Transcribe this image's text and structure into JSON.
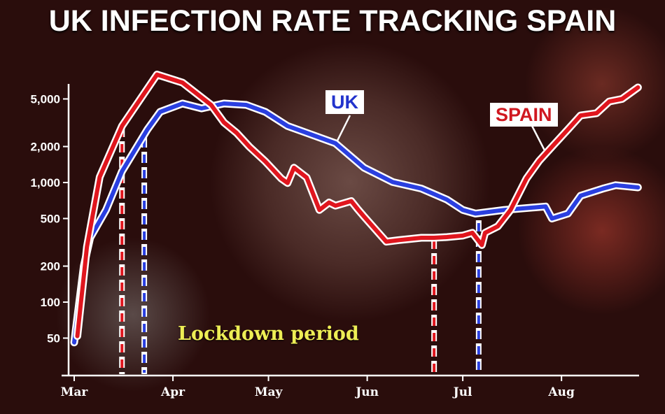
{
  "chart_data": {
    "type": "line",
    "title": "UK INFECTION RATE TRACKING SPAIN",
    "xlabel": "",
    "ylabel": "",
    "x_unit": "days since 1 March",
    "y_scale": "log",
    "ylim": [
      35,
      9000
    ],
    "xlim": [
      0,
      178
    ],
    "y_ticks": [
      {
        "value": 5000,
        "label": "5,000"
      },
      {
        "value": 2000,
        "label": "2,000"
      },
      {
        "value": 1000,
        "label": "1,000"
      },
      {
        "value": 500,
        "label": "500"
      },
      {
        "value": 200,
        "label": "200"
      },
      {
        "value": 100,
        "label": "100"
      },
      {
        "value": 50,
        "label": "50"
      }
    ],
    "x_ticks": [
      {
        "value": 0,
        "label": "Mar"
      },
      {
        "value": 31,
        "label": "Apr"
      },
      {
        "value": 61,
        "label": "May"
      },
      {
        "value": 92,
        "label": "Jun"
      },
      {
        "value": 122,
        "label": "Jul"
      },
      {
        "value": 153,
        "label": "Aug"
      }
    ],
    "series": [
      {
        "name": "SPAIN",
        "color": "#e0161e",
        "x": [
          1,
          4,
          8,
          15,
          26,
          34,
          43,
          47,
          51,
          55,
          60,
          65,
          67,
          69,
          73,
          77,
          80,
          82,
          87,
          89,
          91,
          98,
          102,
          109,
          113,
          117,
          122,
          125,
          128,
          129,
          133,
          137,
          142,
          146,
          150,
          155,
          159,
          164,
          168,
          172,
          177
        ],
        "y": [
          52,
          290,
          1110,
          2970,
          8000,
          6850,
          4460,
          3180,
          2600,
          1990,
          1500,
          1080,
          990,
          1330,
          1100,
          590,
          680,
          640,
          700,
          600,
          520,
          320,
          330,
          345,
          345,
          350,
          360,
          380,
          300,
          380,
          430,
          590,
          1080,
          1520,
          1990,
          2780,
          3640,
          3800,
          4760,
          5000,
          6240
        ]
      },
      {
        "name": "UK",
        "color": "#2a3fe0",
        "x": [
          0,
          3,
          5,
          10,
          15,
          23,
          27,
          34,
          40,
          47,
          54,
          60,
          67,
          73,
          82,
          91,
          100,
          109,
          117,
          122,
          126,
          135,
          148,
          150,
          155,
          159,
          166,
          170,
          177
        ],
        "y": [
          46,
          200,
          345,
          590,
          1240,
          2780,
          3900,
          4580,
          4170,
          4580,
          4460,
          3900,
          2970,
          2600,
          2130,
          1330,
          1010,
          890,
          720,
          590,
          550,
          590,
          630,
          500,
          550,
          775,
          890,
          950,
          910
        ]
      }
    ],
    "lockdowns": [
      {
        "country": "SPAIN",
        "color": "#e0161e",
        "start": 15,
        "end": 113
      },
      {
        "country": "UK",
        "color": "#2a3fe0",
        "start": 22,
        "end": 127
      }
    ],
    "annotations": {
      "uk_label": "UK",
      "spain_label": "SPAIN",
      "lockdown": "Lockdown period"
    }
  }
}
